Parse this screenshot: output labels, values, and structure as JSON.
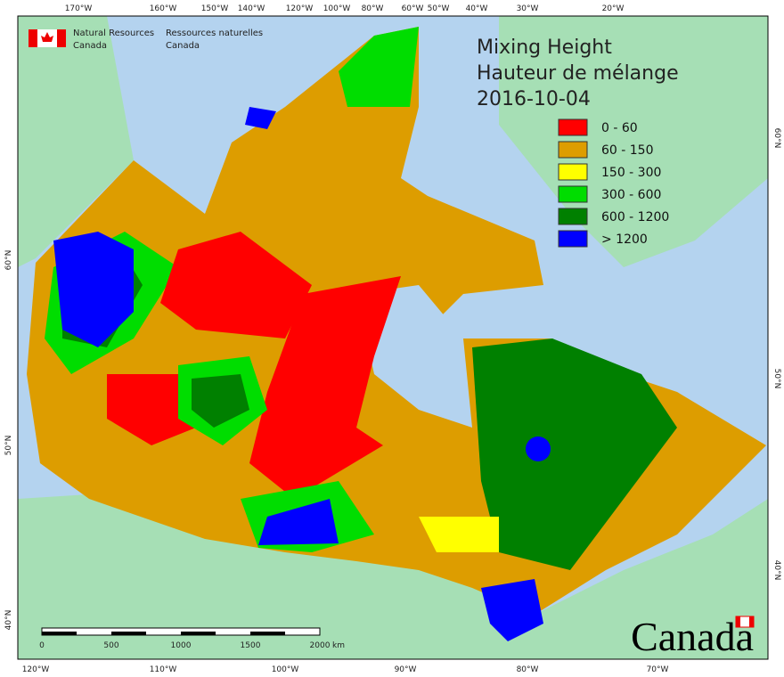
{
  "header": {
    "english": [
      "Natural Resources",
      "Canada"
    ],
    "french": [
      "Ressources naturelles",
      "Canada"
    ]
  },
  "title": [
    "Mixing Height",
    "Hauteur de mélange",
    "2016-10-04"
  ],
  "legend": [
    {
      "label": "0 - 60",
      "color": "#ff0000"
    },
    {
      "label": "60 - 150",
      "color": "#dd9d00"
    },
    {
      "label": "150 - 300",
      "color": "#ffff00"
    },
    {
      "label": "300 - 600",
      "color": "#00dd00"
    },
    {
      "label": "600 - 1200",
      "color": "#008000"
    },
    {
      "label": "> 1200",
      "color": "#0000ff"
    }
  ],
  "graticule": {
    "top": [
      "170°W",
      "160°W",
      "150°W",
      "140°W",
      "120°W",
      "100°W",
      "80°W",
      "60°W",
      "50°W",
      "40°W",
      "30°W",
      "20°W"
    ],
    "bottom": [
      "120°W",
      "110°W",
      "100°W",
      "90°W",
      "80°W",
      "70°W"
    ],
    "left": [
      "60°N",
      "50°N",
      "40°N"
    ],
    "right": [
      "60°N",
      "50°N",
      "40°N"
    ]
  },
  "scale_bar": {
    "ticks": [
      "0",
      "500",
      "1000",
      "1500",
      "2000"
    ],
    "unit": "km"
  },
  "wordmark": "Canada"
}
